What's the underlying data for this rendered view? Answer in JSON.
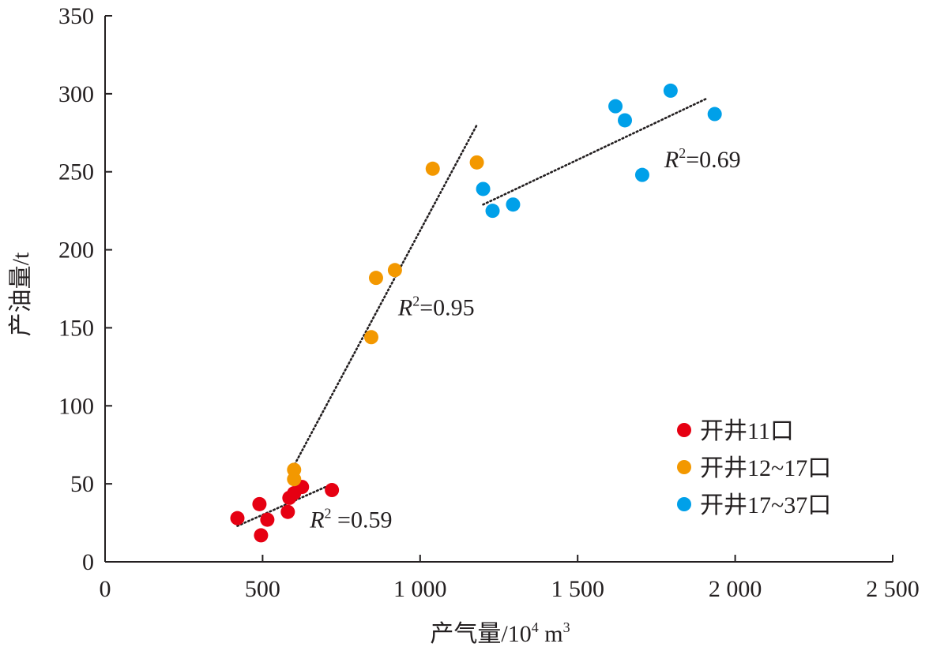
{
  "chart_data": {
    "type": "scatter",
    "xlabel": "产气量/10",
    "xlabel_sup": "4",
    "xlabel_unit": " m",
    "xlabel_unit_sup": "3",
    "ylabel": "产油量/t",
    "xlim": [
      0,
      2500
    ],
    "ylim": [
      0,
      350
    ],
    "x_ticks": [
      0,
      500,
      1000,
      1500,
      2000,
      2500
    ],
    "x_tick_labels": [
      "0",
      "500",
      "1 000",
      "1 500",
      "2 000",
      "2 500"
    ],
    "y_ticks": [
      0,
      50,
      100,
      150,
      200,
      250,
      300,
      350
    ],
    "y_tick_labels": [
      "0",
      "50",
      "100",
      "150",
      "200",
      "250",
      "300",
      "350"
    ],
    "grid": false,
    "legend_position": "bottom-right",
    "series": [
      {
        "name": "开井11口",
        "color": "#e60012",
        "points": [
          [
            420,
            28
          ],
          [
            490,
            37
          ],
          [
            495,
            17
          ],
          [
            515,
            27
          ],
          [
            580,
            32
          ],
          [
            585,
            41
          ],
          [
            600,
            44
          ],
          [
            625,
            48
          ],
          [
            720,
            46
          ]
        ],
        "trendline": {
          "x": [
            420,
            700
          ],
          "y": [
            23,
            48
          ]
        },
        "annotation": {
          "label": "R",
          "sup": "2",
          "text": " =0.59",
          "x": 650,
          "y": 22
        }
      },
      {
        "name": "开井12~17口",
        "color": "#f39800",
        "points": [
          [
            600,
            59
          ],
          [
            600,
            53
          ],
          [
            845,
            144
          ],
          [
            860,
            182
          ],
          [
            920,
            187
          ],
          [
            1040,
            252
          ],
          [
            1180,
            256
          ]
        ],
        "trendline": {
          "x": [
            590,
            1180
          ],
          "y": [
            58,
            280
          ]
        },
        "annotation": {
          "label": "R",
          "sup": "2",
          "text": "=0.95",
          "x": 930,
          "y": 158
        }
      },
      {
        "name": "开井17~37口",
        "color": "#00a0e9",
        "points": [
          [
            1200,
            239
          ],
          [
            1230,
            225
          ],
          [
            1295,
            229
          ],
          [
            1620,
            292
          ],
          [
            1650,
            283
          ],
          [
            1705,
            248
          ],
          [
            1795,
            302
          ],
          [
            1935,
            287
          ]
        ],
        "trendline": {
          "x": [
            1200,
            1910
          ],
          "y": [
            229,
            297
          ]
        },
        "annotation": {
          "label": "R",
          "sup": "2",
          "text": "=0.69",
          "x": 1775,
          "y": 253
        }
      }
    ]
  }
}
